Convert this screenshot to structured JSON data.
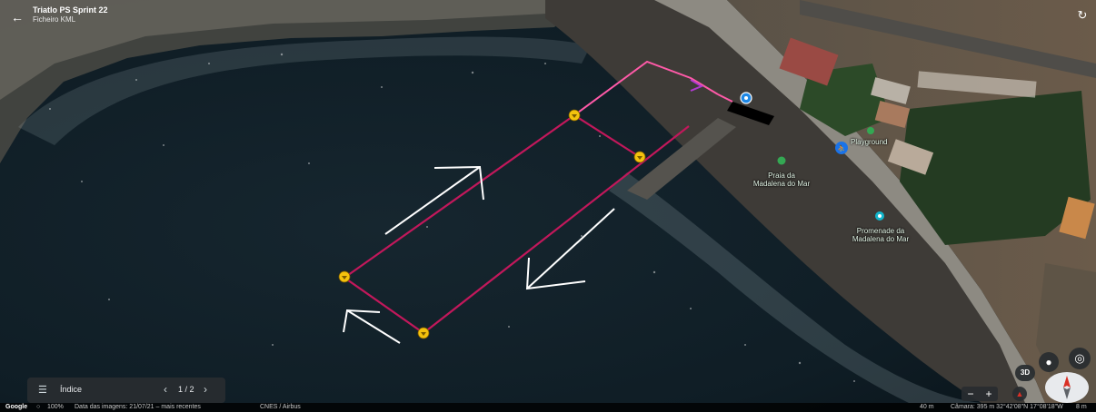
{
  "header": {
    "title": "Triatlo PS Sprint 22",
    "subtitle": "Ficheiro KML"
  },
  "index_panel": {
    "label": "Índice",
    "pager": "1 / 2"
  },
  "map_labels": {
    "playground": "Playground",
    "beach_line1": "Praia da",
    "beach_line2": "Madalena do Mar",
    "promenade_line1": "Promenade da",
    "promenade_line2": "Madalena do Mar"
  },
  "controls": {
    "view_3d": "3D"
  },
  "footer": {
    "brand": "Google",
    "zoom": "100%",
    "imagery_date": "Data das imagens: 21/07/21 – mais recentes",
    "attribution": "CNES / Airbus",
    "scale": "40 m",
    "camera": "Câmara: 395 m  32°42'08\"N 17°08'18\"W",
    "elevation": "8 m"
  },
  "colors": {
    "route_line": "#c2185b",
    "entry_line": "#ff5aa8",
    "buoy_marker": "#f4c20d",
    "pin_marker": "#1e88e5",
    "arrow": "#ffffff"
  },
  "icons": {
    "back": "arrow-left-icon",
    "reset": "rotate-icon",
    "list": "list-icon",
    "pegman": "pegman-icon",
    "locate": "my-location-icon",
    "compass": "compass-icon"
  }
}
